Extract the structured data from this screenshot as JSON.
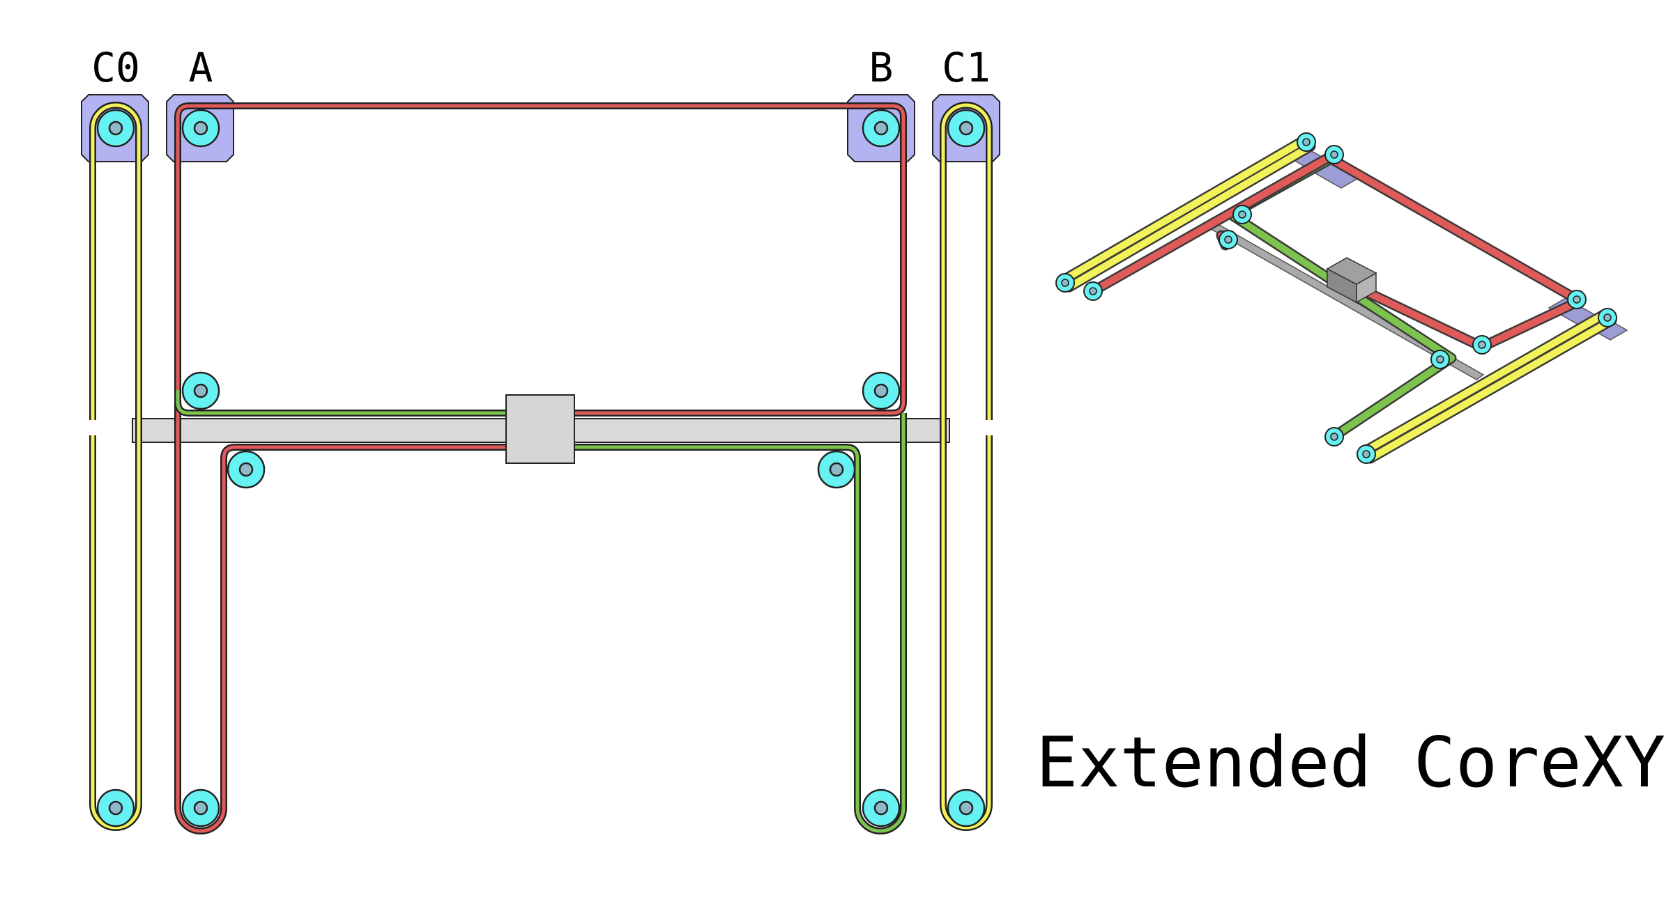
{
  "title": "Extended CoreXY",
  "motor_labels": {
    "c0": "C0",
    "a": "A",
    "b": "B",
    "c1": "C1"
  },
  "colors": {
    "background": "#ffffff",
    "motor_plate": "#b3b3f2",
    "pulley": "#66f2f2",
    "belt_a": "#e05a5a",
    "belt_b": "#7cc44e",
    "belt_c": "#f2f25a",
    "gantry": "#d9d9d9",
    "carriage": "#d6d6d6",
    "outline": "#222222"
  },
  "icons": {
    "motor": "stepper-motor-plate",
    "pulley": "idler-pulley",
    "carriage": "toolhead-carriage"
  }
}
